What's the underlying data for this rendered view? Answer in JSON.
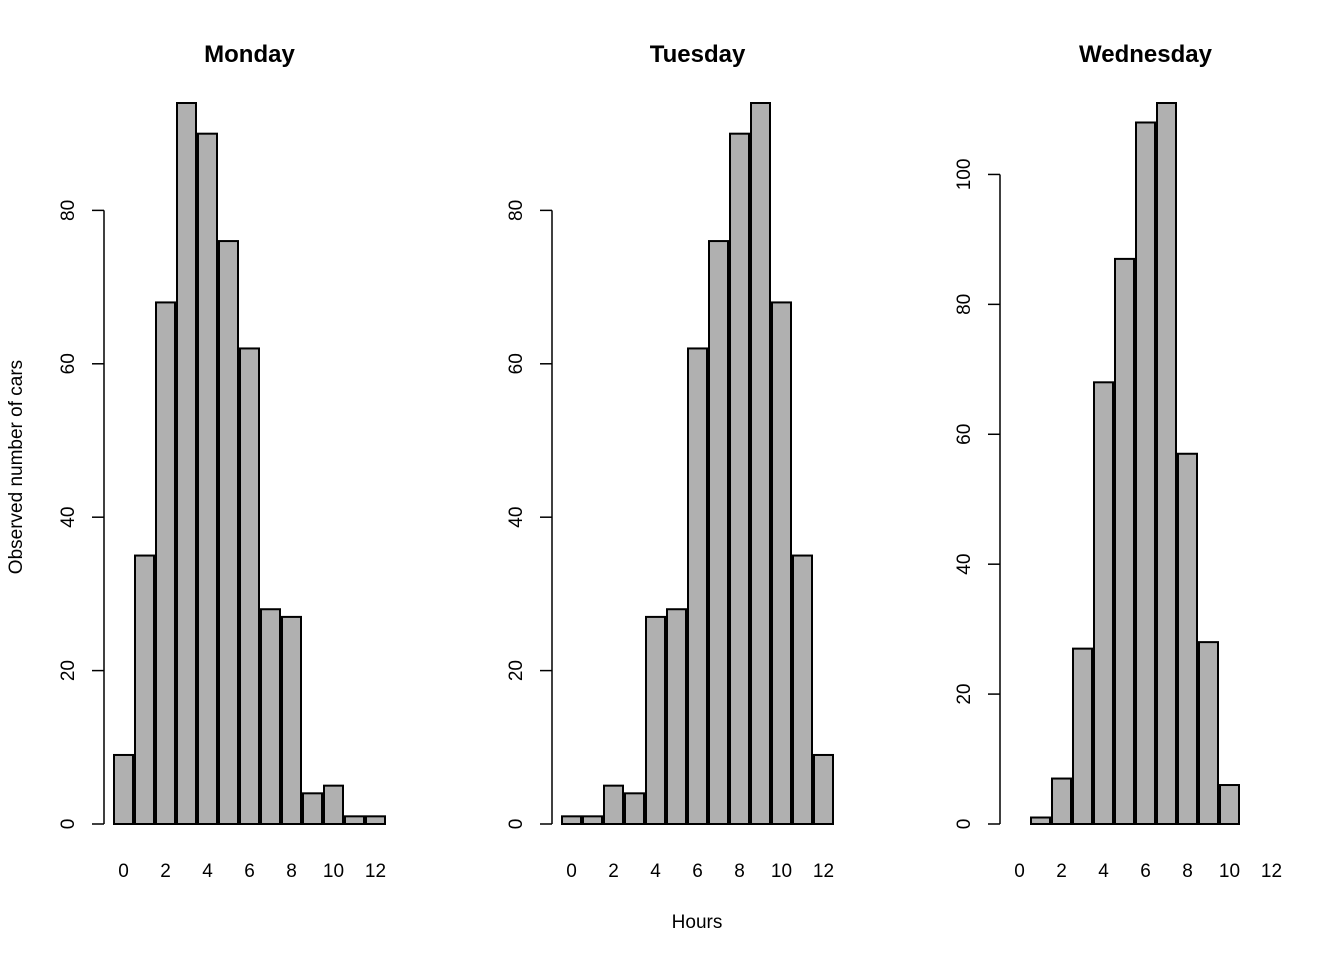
{
  "figure": {
    "ylabel": "Observed number of cars",
    "xlabel": "Hours"
  },
  "chart_data": [
    {
      "type": "bar",
      "title": "Monday",
      "categories": [
        0,
        1,
        2,
        3,
        4,
        5,
        6,
        7,
        8,
        9,
        10,
        11,
        12
      ],
      "x_tick_labels": [
        "0",
        "2",
        "4",
        "6",
        "8",
        "10",
        "12"
      ],
      "values": [
        9,
        35,
        68,
        94,
        90,
        76,
        62,
        28,
        27,
        4,
        5,
        1,
        1
      ],
      "yticks": [
        0,
        20,
        40,
        60,
        80
      ],
      "ylim": [
        0,
        94
      ]
    },
    {
      "type": "bar",
      "title": "Tuesday",
      "categories": [
        0,
        1,
        2,
        3,
        4,
        5,
        6,
        7,
        8,
        9,
        10,
        11,
        12
      ],
      "x_tick_labels": [
        "0",
        "2",
        "4",
        "6",
        "8",
        "10",
        "12"
      ],
      "values": [
        1,
        1,
        5,
        4,
        27,
        28,
        62,
        76,
        90,
        94,
        68,
        35,
        9
      ],
      "yticks": [
        0,
        20,
        40,
        60,
        80
      ],
      "ylim": [
        0,
        94
      ]
    },
    {
      "type": "bar",
      "title": "Wednesday",
      "categories": [
        0,
        1,
        2,
        3,
        4,
        5,
        6,
        7,
        8,
        9,
        10,
        11,
        12
      ],
      "x_tick_labels": [
        "0",
        "2",
        "4",
        "6",
        "8",
        "10",
        "12"
      ],
      "values": [
        0,
        1,
        7,
        27,
        68,
        87,
        108,
        111,
        57,
        28,
        6,
        0,
        0
      ],
      "yticks": [
        0,
        20,
        40,
        60,
        80,
        100
      ],
      "ylim": [
        0,
        111
      ]
    }
  ]
}
